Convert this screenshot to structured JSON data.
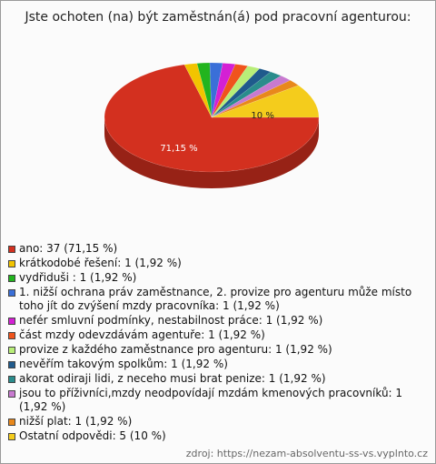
{
  "chart_data": {
    "type": "pie3d",
    "title": "Jste ochoten (na) být zaměstnán(á) pod pracovní agenturou:",
    "categories": [
      "ano: 37 (71,15 %)",
      "krátkodobé řešení: 1 (1,92 %)",
      "vydřiduši : 1 (1,92 %)",
      "1. nižší ochrana práv zaměstnance, 2. provize pro agenturu může místo toho jít do zvýšení mzdy pracovníka: 1 (1,92 %)",
      "nefér smluvní podmínky, nestabilnost práce: 1 (1,92 %)",
      "část mzdy odevzdávám agentuře: 1 (1,92 %)",
      "provize z každého zaměstnance pro agenturu: 1 (1,92 %)",
      "nevěřím takovým spolkům: 1 (1,92 %)",
      "akorat odiraji lidi, z neceho musi brat penize: 1 (1,92 %)",
      "jsou to příživníci,mzdy neodpovídají mzdám kmenových pracovníků: 1 (1,92 %)",
      "nižší plat: 1 (1,92 %)",
      "Ostatní odpovědi: 5 (10 %)"
    ],
    "values": [
      71.15,
      1.92,
      1.92,
      1.92,
      1.92,
      1.92,
      1.92,
      1.92,
      1.92,
      1.92,
      1.92,
      10
    ],
    "value_labels": [
      "71,15 %",
      null,
      null,
      null,
      null,
      null,
      null,
      null,
      null,
      null,
      null,
      "10 %"
    ],
    "colors": [
      "#d3301f",
      "#f2c400",
      "#22b41e",
      "#3a6fd8",
      "#d420d4",
      "#f0541c",
      "#b8ee78",
      "#1f5a8c",
      "#2a8c8c",
      "#c87ad0",
      "#e8881c",
      "#f4cc1c"
    ],
    "source": "zdroj: https://nezam-absolventu-ss-vs.vyplnto.cz"
  }
}
